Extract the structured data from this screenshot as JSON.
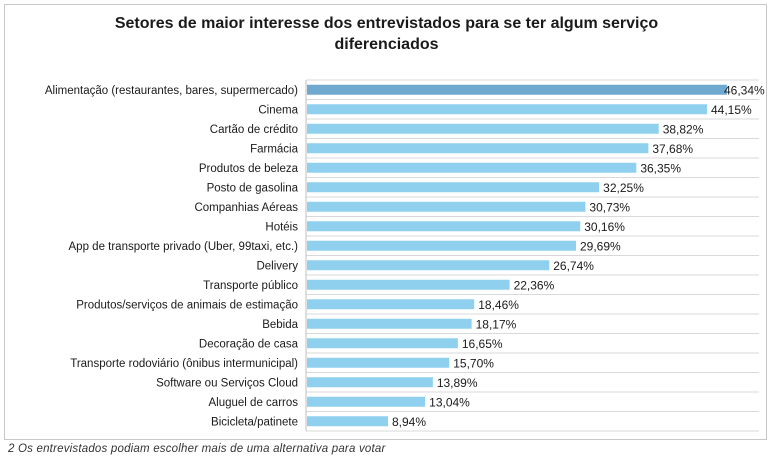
{
  "title_line1": "Setores de maior interesse dos entrevistados para se ter algum serviço",
  "title_line2": "diferenciados",
  "footnote": "2 Os entrevistados podiam escolher mais de uma alternativa para votar",
  "colors": {
    "bar": "#8fd0ef",
    "bar_highlight": "#6fa9d0",
    "grid": "#d9d9d9"
  },
  "chart_data": {
    "type": "bar",
    "orientation": "horizontal",
    "title": "Setores de maior interesse dos entrevistados para se ter algum serviço diferenciados",
    "xlabel": "",
    "ylabel": "",
    "xlim": [
      0,
      50
    ],
    "grid": true,
    "categories": [
      "Alimentação (restaurantes, bares, supermercado)",
      "Cinema",
      "Cartão de crédito",
      "Farmácia",
      "Produtos de beleza",
      "Posto de gasolina",
      "Companhias Aéreas",
      "Hotéis",
      "App de transporte privado (Uber, 99taxi, etc.)",
      "Delivery",
      "Transporte público",
      "Produtos/serviços de animais de estimação",
      "Bebida",
      "Decoração de casa",
      "Transporte rodoviário (ônibus intermunicipal)",
      "Software ou Serviços Cloud",
      "Aluguel de carros",
      "Bicicleta/patinete"
    ],
    "values": [
      46.34,
      44.15,
      38.82,
      37.68,
      36.35,
      32.25,
      30.73,
      30.16,
      29.69,
      26.74,
      22.36,
      18.46,
      18.17,
      16.65,
      15.7,
      13.89,
      13.04,
      8.94
    ],
    "labels": [
      "46,34%",
      "44,15%",
      "38,82%",
      "37,68%",
      "36,35%",
      "32,25%",
      "30,73%",
      "30,16%",
      "29,69%",
      "26,74%",
      "22,36%",
      "18,46%",
      "18,17%",
      "16,65%",
      "15,70%",
      "13,89%",
      "13,04%",
      "8,94%"
    ]
  }
}
